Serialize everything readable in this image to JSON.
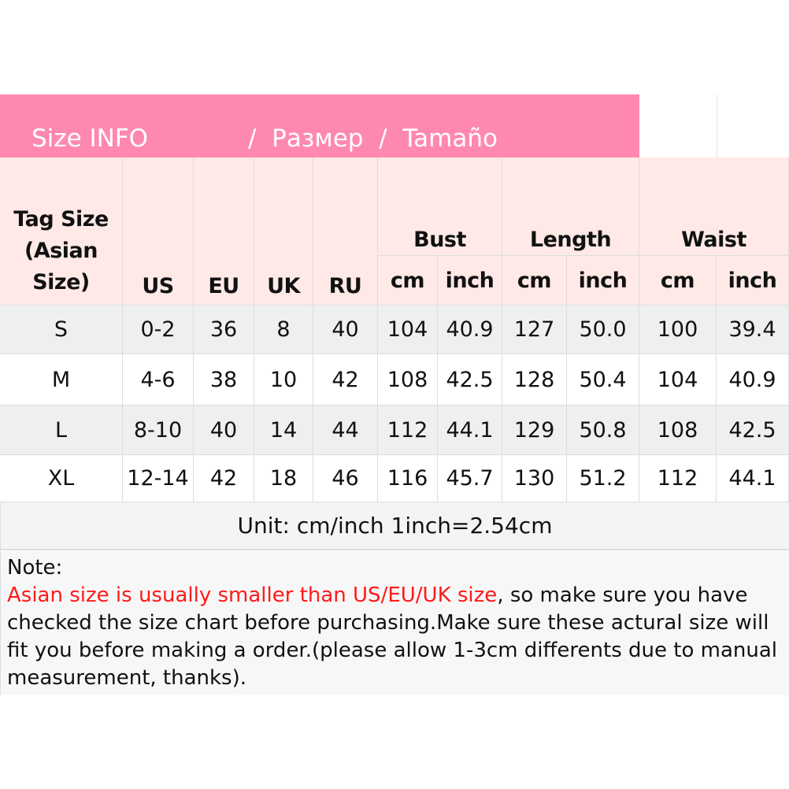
{
  "title": {
    "part1": "Size INFO",
    "part2": "/  Размер  /  Tamaño",
    "color": "#ff88b0"
  },
  "headers": {
    "tag_size": "Tag Size (Asian Size)",
    "us": "US",
    "eu": "EU",
    "uk": "UK",
    "ru": "RU",
    "bust": "Bust",
    "length": "Length",
    "waist": "Waist",
    "cm": "cm",
    "inch": "inch"
  },
  "rows": [
    [
      "S",
      "0-2",
      "36",
      "8",
      "40",
      "104",
      "40.9",
      "127",
      "50.0",
      "100",
      "39.4"
    ],
    [
      "M",
      "4-6",
      "38",
      "10",
      "42",
      "108",
      "42.5",
      "128",
      "50.4",
      "104",
      "40.9"
    ],
    [
      "L",
      "8-10",
      "40",
      "14",
      "44",
      "112",
      "44.1",
      "129",
      "50.8",
      "108",
      "42.5"
    ],
    [
      "XL",
      "12-14",
      "42",
      "18",
      "46",
      "116",
      "45.7",
      "130",
      "51.2",
      "112",
      "44.1"
    ]
  ],
  "unit": "Unit: cm/inch   1inch=2.54cm",
  "note": {
    "label": "Note:",
    "warning": "Asian size is usually smaller than US/EU/UK size",
    "body": ", so make sure you have checked the size chart before purchasing.Make sure these actural size will fit you before making a order.(please allow 1-3cm differents due to manual measurement, thanks).",
    "warning_color": "#ff1a1a"
  }
}
